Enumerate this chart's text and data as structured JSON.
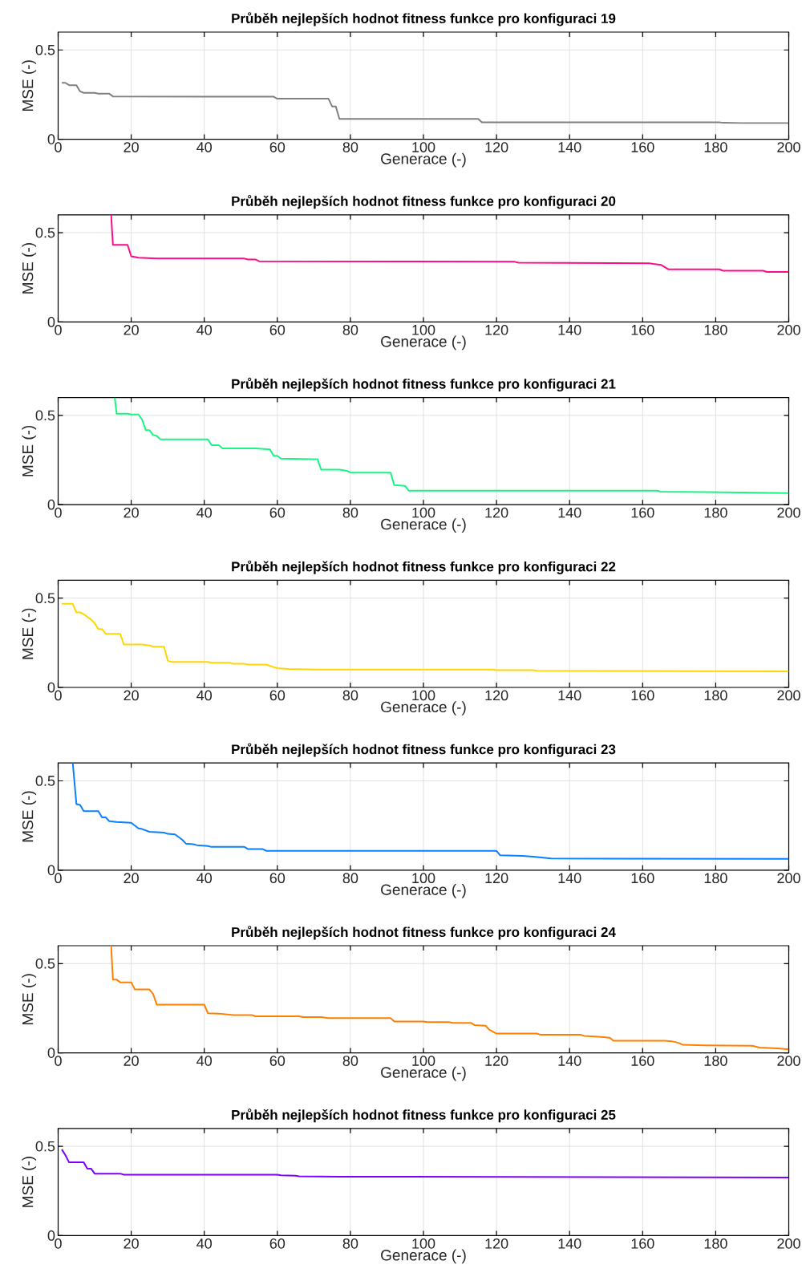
{
  "chart_data": [
    {
      "type": "line",
      "title": "Průběh nejlepších hodnot fitness funkce pro konfiguraci 19",
      "xlabel": "Generace (-)",
      "ylabel": "MSE (-)",
      "color": "#808080",
      "xlim": [
        0,
        200
      ],
      "ylim": [
        0,
        0.6
      ],
      "xticks": [
        0,
        20,
        40,
        60,
        80,
        100,
        120,
        140,
        160,
        180,
        200
      ],
      "yticks": [
        0,
        0.5
      ],
      "grid": true,
      "x": [
        1,
        2,
        3,
        5,
        6,
        7,
        10,
        11,
        14,
        15,
        59,
        60,
        74,
        75,
        76,
        77,
        115,
        116,
        181,
        182,
        187,
        200
      ],
      "values": [
        0.316,
        0.316,
        0.303,
        0.303,
        0.268,
        0.26,
        0.26,
        0.255,
        0.255,
        0.24,
        0.238,
        0.227,
        0.227,
        0.184,
        0.184,
        0.114,
        0.114,
        0.095,
        0.095,
        0.092,
        0.09,
        0.09
      ]
    },
    {
      "type": "line",
      "title": "Průběh nejlepších hodnot fitness funkce pro konfiguraci 20",
      "xlabel": "Generace (-)",
      "ylabel": "MSE (-)",
      "color": "#ff0a87",
      "xlim": [
        0,
        200
      ],
      "ylim": [
        0,
        0.6
      ],
      "xticks": [
        0,
        20,
        40,
        60,
        80,
        100,
        120,
        140,
        160,
        180,
        200
      ],
      "yticks": [
        0,
        0.5
      ],
      "grid": true,
      "x": [
        14.5,
        15,
        19,
        20,
        22,
        27,
        51,
        52,
        54,
        55,
        125,
        126,
        162,
        163,
        165,
        167,
        181,
        182,
        193,
        194,
        200
      ],
      "values": [
        0.6,
        0.432,
        0.432,
        0.368,
        0.36,
        0.355,
        0.355,
        0.35,
        0.35,
        0.34,
        0.337,
        0.332,
        0.328,
        0.325,
        0.32,
        0.295,
        0.295,
        0.287,
        0.287,
        0.28,
        0.28
      ]
    },
    {
      "type": "line",
      "title": "Průběh nejlepších hodnot fitness funkce pro konfiguraci 21",
      "xlabel": "Generace (-)",
      "ylabel": "MSE (-)",
      "color": "#19f582",
      "xlim": [
        0,
        200
      ],
      "ylim": [
        0,
        0.6
      ],
      "xticks": [
        0,
        20,
        40,
        60,
        80,
        100,
        120,
        140,
        160,
        180,
        200
      ],
      "yticks": [
        0,
        0.5
      ],
      "grid": true,
      "x": [
        15.5,
        16,
        19,
        20,
        22,
        23,
        24,
        25,
        26,
        27,
        28,
        41,
        42,
        44,
        45,
        54,
        58,
        59,
        60,
        61,
        70,
        71,
        72,
        77,
        79,
        80,
        91,
        92,
        95,
        96,
        164,
        165,
        178,
        200
      ],
      "values": [
        0.6,
        0.51,
        0.51,
        0.505,
        0.505,
        0.475,
        0.417,
        0.417,
        0.39,
        0.385,
        0.366,
        0.366,
        0.333,
        0.333,
        0.315,
        0.315,
        0.31,
        0.274,
        0.274,
        0.258,
        0.255,
        0.255,
        0.196,
        0.196,
        0.19,
        0.18,
        0.18,
        0.11,
        0.105,
        0.078,
        0.078,
        0.073,
        0.07,
        0.065
      ]
    },
    {
      "type": "line",
      "title": "Průběh nejlepších hodnot fitness funkce pro konfiguraci 22",
      "xlabel": "Generace (-)",
      "ylabel": "MSE (-)",
      "color": "#ffd700",
      "xlim": [
        0,
        200
      ],
      "ylim": [
        0,
        0.6
      ],
      "xticks": [
        0,
        20,
        40,
        60,
        80,
        100,
        120,
        140,
        160,
        180,
        200
      ],
      "yticks": [
        0,
        0.5
      ],
      "grid": true,
      "x": [
        1,
        4,
        5,
        6,
        7,
        9,
        10,
        11,
        12,
        13,
        17,
        18,
        23,
        25,
        26,
        29,
        30,
        31,
        41,
        42,
        47,
        48,
        51,
        52,
        57,
        58,
        60,
        63,
        71,
        119,
        120,
        130,
        131,
        200
      ],
      "values": [
        0.468,
        0.468,
        0.42,
        0.42,
        0.41,
        0.38,
        0.36,
        0.327,
        0.327,
        0.3,
        0.3,
        0.24,
        0.24,
        0.235,
        0.228,
        0.228,
        0.15,
        0.143,
        0.143,
        0.138,
        0.138,
        0.132,
        0.132,
        0.128,
        0.128,
        0.12,
        0.108,
        0.103,
        0.1,
        0.1,
        0.097,
        0.097,
        0.093,
        0.09
      ]
    },
    {
      "type": "line",
      "title": "Průběh nejlepších hodnot fitness funkce pro konfiguraci 23",
      "xlabel": "Generace (-)",
      "ylabel": "MSE (-)",
      "color": "#0a7fff",
      "xlim": [
        0,
        200
      ],
      "ylim": [
        0,
        0.6
      ],
      "xticks": [
        0,
        20,
        40,
        60,
        80,
        100,
        120,
        140,
        160,
        180,
        200
      ],
      "yticks": [
        0,
        0.5
      ],
      "grid": true,
      "x": [
        4,
        5,
        6,
        7,
        11,
        12,
        13,
        14,
        16,
        20,
        22,
        23,
        25,
        29,
        30,
        32,
        33,
        34,
        35,
        37,
        38,
        41,
        42,
        51,
        52,
        56,
        57,
        120,
        121,
        127,
        130,
        135,
        200
      ],
      "values": [
        0.6,
        0.37,
        0.365,
        0.33,
        0.33,
        0.296,
        0.296,
        0.274,
        0.27,
        0.265,
        0.234,
        0.23,
        0.215,
        0.21,
        0.203,
        0.2,
        0.185,
        0.17,
        0.148,
        0.145,
        0.14,
        0.135,
        0.13,
        0.13,
        0.118,
        0.118,
        0.108,
        0.108,
        0.083,
        0.08,
        0.075,
        0.065,
        0.063
      ]
    },
    {
      "type": "line",
      "title": "Průběh nejlepších hodnot fitness funkce pro konfiguraci 24",
      "xlabel": "Generace (-)",
      "ylabel": "MSE (-)",
      "color": "#ff8000",
      "xlim": [
        0,
        200
      ],
      "ylim": [
        0,
        0.6
      ],
      "xticks": [
        0,
        20,
        40,
        60,
        80,
        100,
        120,
        140,
        160,
        180,
        200
      ],
      "yticks": [
        0,
        0.5
      ],
      "grid": true,
      "x": [
        14.5,
        15,
        16,
        17,
        20,
        21,
        25,
        26,
        27,
        40,
        41,
        44,
        48,
        53,
        54,
        66,
        67,
        72,
        74,
        91,
        92,
        100,
        101,
        107,
        108,
        113,
        114,
        117,
        118,
        120,
        131,
        132,
        143,
        144,
        148,
        151,
        152,
        166,
        168,
        170,
        171,
        177,
        190,
        192,
        197,
        200
      ],
      "values": [
        0.6,
        0.41,
        0.41,
        0.395,
        0.395,
        0.355,
        0.355,
        0.33,
        0.27,
        0.27,
        0.222,
        0.22,
        0.212,
        0.212,
        0.205,
        0.205,
        0.2,
        0.2,
        0.195,
        0.195,
        0.176,
        0.176,
        0.172,
        0.172,
        0.168,
        0.168,
        0.155,
        0.152,
        0.13,
        0.108,
        0.108,
        0.102,
        0.102,
        0.095,
        0.09,
        0.085,
        0.068,
        0.068,
        0.065,
        0.055,
        0.045,
        0.042,
        0.04,
        0.03,
        0.025,
        0.02
      ]
    },
    {
      "type": "line",
      "title": "Průběh nejlepších hodnot fitness funkce pro konfiguraci 25",
      "xlabel": "Generace (-)",
      "ylabel": "MSE (-)",
      "color": "#8000ff",
      "xlim": [
        0,
        200
      ],
      "ylim": [
        0,
        0.6
      ],
      "xticks": [
        0,
        20,
        40,
        60,
        80,
        100,
        120,
        140,
        160,
        180,
        200
      ],
      "yticks": [
        0,
        0.5
      ],
      "grid": true,
      "x": [
        1,
        2,
        3,
        7,
        8,
        9,
        10,
        17,
        18,
        60,
        61,
        65,
        66,
        77,
        200
      ],
      "values": [
        0.483,
        0.45,
        0.41,
        0.41,
        0.375,
        0.375,
        0.347,
        0.347,
        0.341,
        0.341,
        0.338,
        0.335,
        0.332,
        0.33,
        0.325
      ]
    }
  ]
}
